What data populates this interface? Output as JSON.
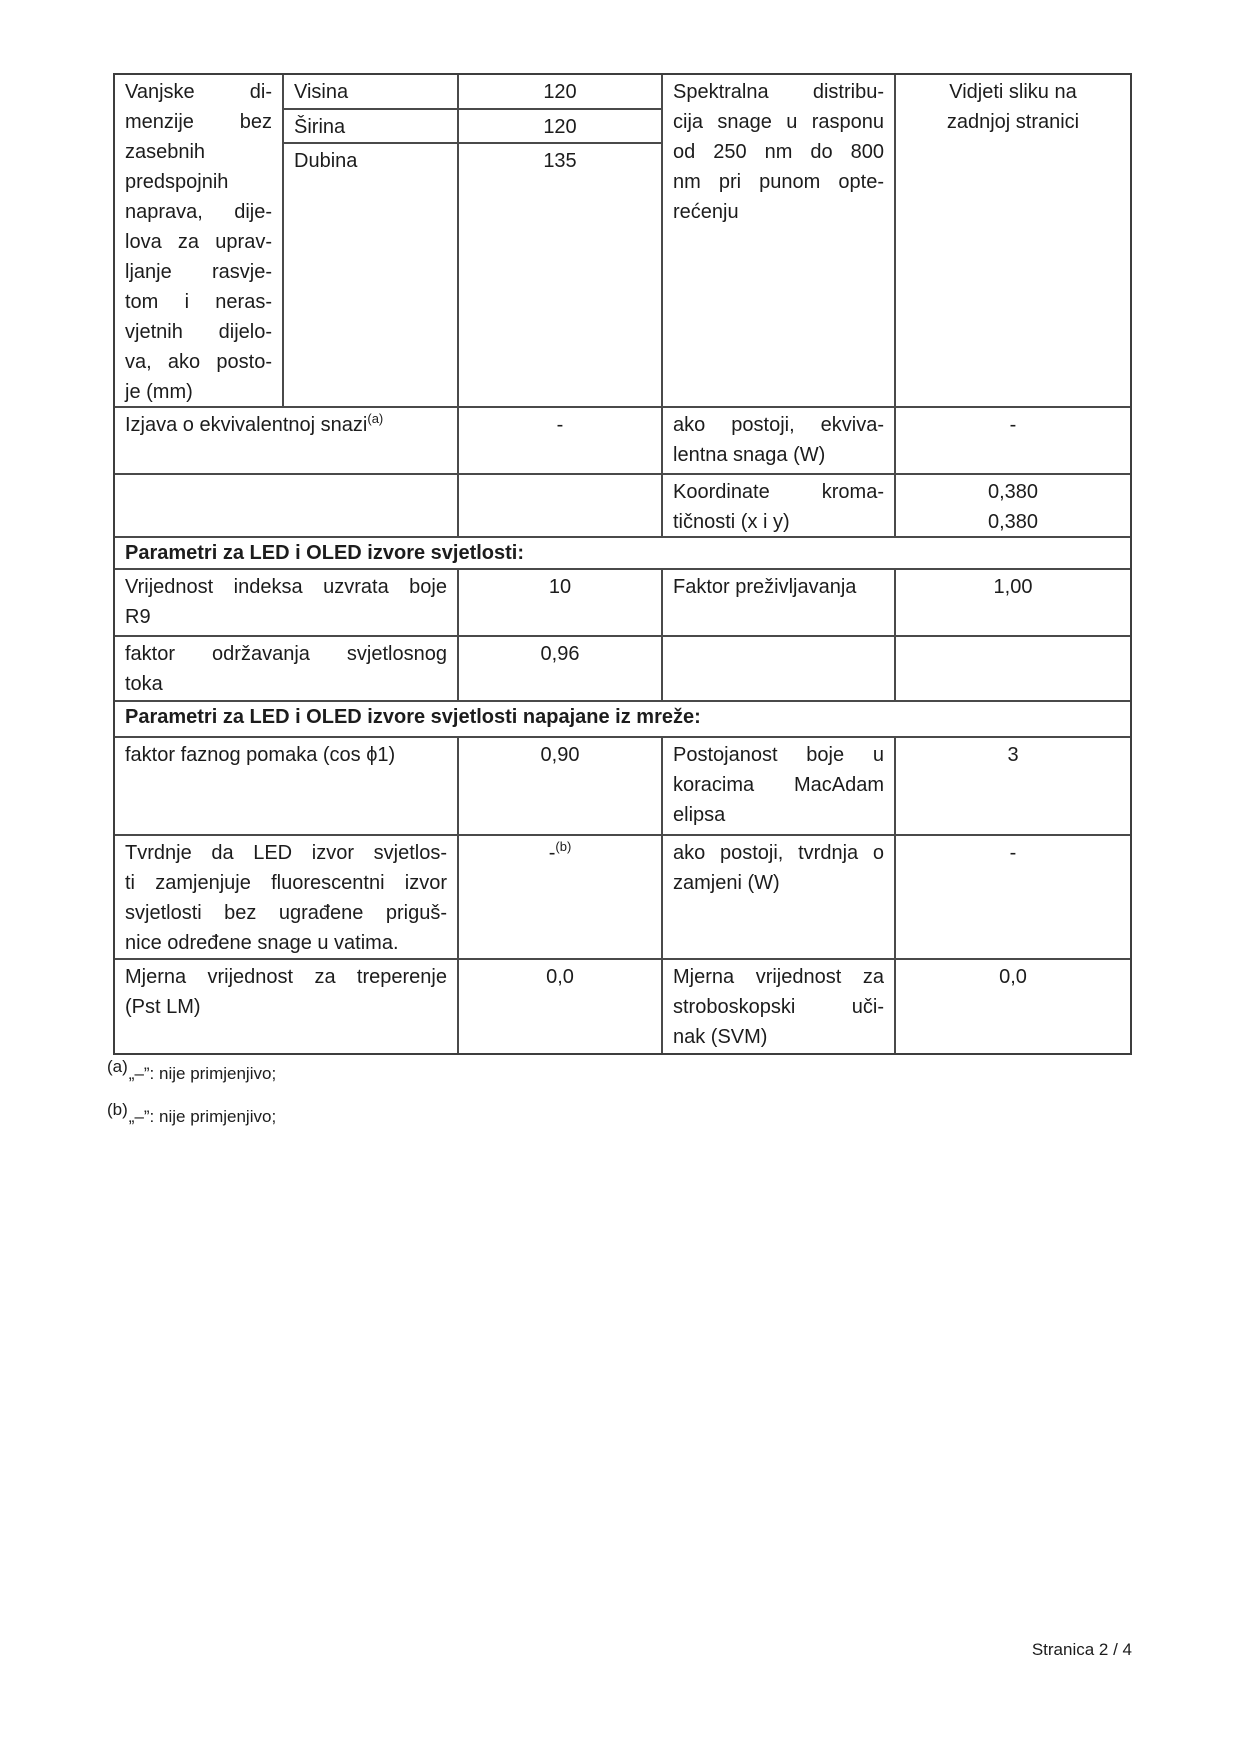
{
  "page": {
    "footer": "Stranica 2 / 4"
  },
  "table": {
    "dimensions": {
      "label": "Vanjske di-\nmenzije bez\nzasebnih\npredspojnih\nnaprava, dije-\nlova za uprav-\nljanje rasvje-\ntom i neras-\nvjetnih dijelo-\nva, ako posto-\nje (mm)",
      "rows": [
        {
          "label": "Visina",
          "value": "120"
        },
        {
          "label": "Širina",
          "value": "120"
        },
        {
          "label": "Dubina",
          "value": "135"
        }
      ],
      "spectral_label": "Spektralna distribu-\ncija snage u rasponu\nod 250 nm do 800\nnm pri punom opte-\nrećenju",
      "spectral_value": "Vidjeti sliku na\nzadnjoj stranici"
    },
    "rows": {
      "equiv": {
        "label": "Izjava o ekvivalentnoj snazi",
        "label_sup": "(a)",
        "value": "-",
        "right_label": "ako postoji, ekviva-\nlentna snaga (W)",
        "right_value": "-"
      },
      "chroma": {
        "right_label": "Koordinate kroma-\ntičnosti (x i y)",
        "right_value": "0,380\n0,380"
      },
      "r9": {
        "label": "Vrijednost indeksa uzvrata boje\nR9",
        "value": "10",
        "right_label": "Faktor preživljavanja",
        "right_value": "1,00"
      },
      "lumen_maintenance": {
        "label": "faktor održavanja svjetlosnog\ntoka",
        "value": "0,96"
      },
      "power_factor": {
        "label": "faktor faznog pomaka (cos ϕ1)",
        "value": "0,90",
        "right_label": "Postojanost boje u\nkoracima MacAdam\nelipsa",
        "right_value": "3"
      },
      "replacement_claim": {
        "label": "Tvrdnje da LED izvor svjetlos-\nti zamjenjuje fluorescentni izvor\nsvjetlosti bez ugrađene priguš-\nnice određene snage u vatima.",
        "value": "-",
        "value_sup": "(b)",
        "right_label": "ako postoji, tvrdnja o\nzamjeni (W)",
        "right_value": "-"
      },
      "flicker": {
        "label": "Mjerna vrijednost za treperenje\n(Pst LM)",
        "value": "0,0",
        "right_label": "Mjerna vrijednost za\nstroboskopski uči-\nnak (SVM)",
        "right_value": "0,0"
      }
    },
    "section1_title": "Parametri za LED i OLED izvore svjetlosti:",
    "section2_title": "Parametri za LED i OLED izvore svjetlosti napajane iz mreže:"
  },
  "footnotes": [
    {
      "marker": "(a)",
      "text": "„–”: nije primjenjivo;"
    },
    {
      "marker": "(b)",
      "text": "„–”: nije primjenjivo;"
    }
  ]
}
